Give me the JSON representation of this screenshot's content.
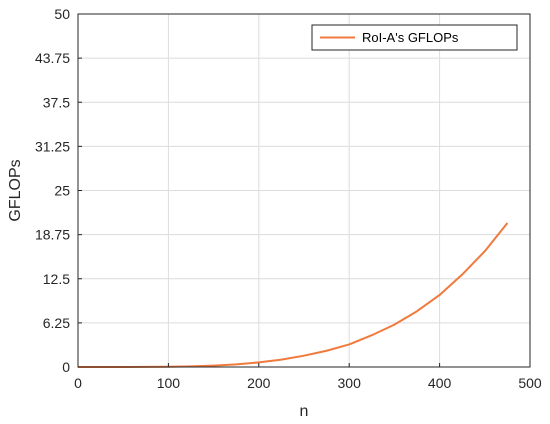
{
  "chart_data": {
    "type": "line",
    "title": "",
    "xlabel": "n",
    "ylabel": "GFLOPs",
    "xlim": [
      0,
      500
    ],
    "ylim": [
      0,
      50
    ],
    "xticks": [
      0,
      100,
      200,
      300,
      400,
      500
    ],
    "yticks": [
      0,
      6.25,
      12.5,
      18.75,
      25,
      31.25,
      37.5,
      43.75,
      50
    ],
    "xtick_labels": [
      "0",
      "100",
      "200",
      "300",
      "400",
      "500"
    ],
    "ytick_labels": [
      "0",
      "6.25",
      "12.5",
      "18.75",
      "25",
      "31.25",
      "37.5",
      "43.75",
      "50"
    ],
    "grid": true,
    "legend_position": "top-right",
    "series": [
      {
        "name": "RoI-A's GFLOPs",
        "color": "#f07a3c",
        "x": [
          0,
          25,
          50,
          75,
          100,
          125,
          150,
          175,
          200,
          225,
          250,
          275,
          300,
          325,
          350,
          375,
          400,
          425,
          450,
          475
        ],
        "y": [
          0,
          0.0001,
          0.002,
          0.01,
          0.04,
          0.09,
          0.2,
          0.38,
          0.65,
          1.04,
          1.6,
          2.3,
          3.2,
          4.5,
          6.0,
          7.9,
          10.2,
          13.1,
          16.4,
          20.4
        ]
      }
    ]
  }
}
